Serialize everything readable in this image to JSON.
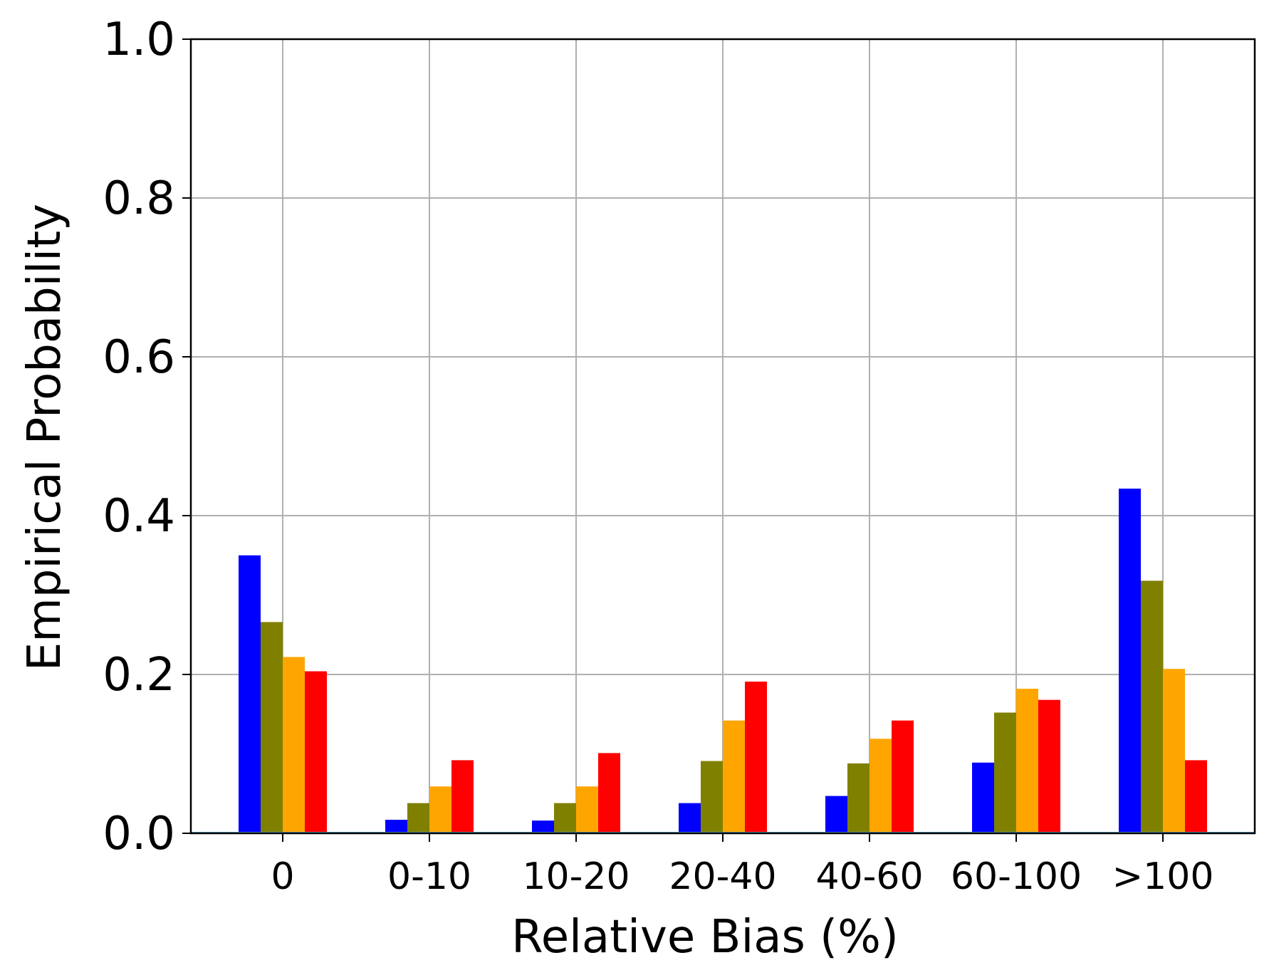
{
  "chart_data": {
    "type": "bar",
    "title": "",
    "xlabel": "Relative Bias (%)",
    "ylabel": "Empirical Probability",
    "categories": [
      "0",
      "0-10",
      "10-20",
      "20-40",
      "40-60",
      "60-100",
      ">100"
    ],
    "ylim": [
      0,
      1.0
    ],
    "yticks": [
      0.0,
      0.2,
      0.4,
      0.6,
      0.8,
      1.0
    ],
    "ytick_labels": [
      "0.0",
      "0.2",
      "0.4",
      "0.6",
      "0.8",
      "1.0"
    ],
    "grid": true,
    "legend": "none",
    "series": [
      {
        "color": "#0000ff",
        "values": [
          0.35,
          0.017,
          0.016,
          0.038,
          0.047,
          0.089,
          0.434
        ]
      },
      {
        "color": "#808000",
        "values": [
          0.266,
          0.038,
          0.038,
          0.091,
          0.088,
          0.152,
          0.318
        ]
      },
      {
        "color": "#ffa500",
        "values": [
          0.222,
          0.059,
          0.059,
          0.142,
          0.119,
          0.182,
          0.207
        ]
      },
      {
        "color": "#ff0000",
        "values": [
          0.204,
          0.092,
          0.101,
          0.191,
          0.142,
          0.168,
          0.092
        ]
      }
    ],
    "colors": {
      "grid": "#b0b0b0",
      "axis": "#000000",
      "baseline": "#4db8d6"
    }
  }
}
